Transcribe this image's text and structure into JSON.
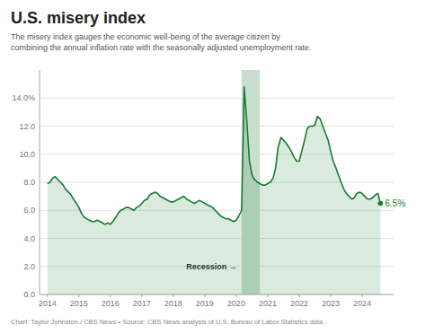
{
  "chart_data": {
    "type": "area",
    "title": "U.S. misery index",
    "subtitle": "The misery index gauges the economic well-being of the average citizen by\ncombining the annual inflation rate with the seasonally adjusted unemployment rate.",
    "footer": "Chart: Taylor Johnston / CBS News • Source: CBS News analysis of U.S. Bureau of Labor Statistics data",
    "color": "#1a7a30",
    "grid": true,
    "x": [
      2014.0,
      2014.08,
      2014.17,
      2014.25,
      2014.33,
      2014.42,
      2014.5,
      2014.58,
      2014.67,
      2014.75,
      2014.83,
      2014.92,
      2015.0,
      2015.08,
      2015.17,
      2015.25,
      2015.33,
      2015.42,
      2015.5,
      2015.58,
      2015.67,
      2015.75,
      2015.83,
      2015.92,
      2016.0,
      2016.08,
      2016.17,
      2016.25,
      2016.33,
      2016.42,
      2016.5,
      2016.58,
      2016.67,
      2016.75,
      2016.83,
      2016.92,
      2017.0,
      2017.08,
      2017.17,
      2017.25,
      2017.33,
      2017.42,
      2017.5,
      2017.58,
      2017.67,
      2017.75,
      2017.83,
      2017.92,
      2018.0,
      2018.08,
      2018.17,
      2018.25,
      2018.33,
      2018.42,
      2018.5,
      2018.58,
      2018.67,
      2018.75,
      2018.83,
      2018.92,
      2019.0,
      2019.08,
      2019.17,
      2019.25,
      2019.33,
      2019.42,
      2019.5,
      2019.58,
      2019.67,
      2019.75,
      2019.83,
      2019.92,
      2020.0,
      2020.08,
      2020.17,
      2020.25,
      2020.33,
      2020.42,
      2020.5,
      2020.58,
      2020.67,
      2020.75,
      2020.83,
      2020.92,
      2021.0,
      2021.08,
      2021.17,
      2021.25,
      2021.33,
      2021.42,
      2021.5,
      2021.58,
      2021.67,
      2021.75,
      2021.83,
      2021.92,
      2022.0,
      2022.08,
      2022.17,
      2022.25,
      2022.33,
      2022.42,
      2022.5,
      2022.58,
      2022.67,
      2022.75,
      2022.83,
      2022.92,
      2023.0,
      2023.08,
      2023.17,
      2023.25,
      2023.33,
      2023.42,
      2023.5,
      2023.58,
      2023.67,
      2023.75,
      2023.83,
      2023.92,
      2024.0,
      2024.08,
      2024.17,
      2024.25,
      2024.33,
      2024.42,
      2024.5,
      2024.58
    ],
    "values": [
      7.9,
      8.0,
      8.3,
      8.4,
      8.2,
      8.0,
      7.8,
      7.5,
      7.3,
      7.1,
      6.8,
      6.5,
      6.2,
      5.8,
      5.5,
      5.4,
      5.3,
      5.2,
      5.2,
      5.3,
      5.2,
      5.1,
      5.0,
      5.1,
      5.0,
      5.2,
      5.5,
      5.8,
      6.0,
      6.1,
      6.2,
      6.2,
      6.1,
      6.0,
      6.2,
      6.3,
      6.5,
      6.7,
      6.8,
      7.1,
      7.2,
      7.3,
      7.2,
      7.0,
      6.9,
      6.8,
      6.7,
      6.6,
      6.6,
      6.7,
      6.8,
      6.9,
      7.0,
      6.8,
      6.7,
      6.6,
      6.5,
      6.6,
      6.7,
      6.6,
      6.5,
      6.4,
      6.3,
      6.2,
      6.0,
      5.8,
      5.6,
      5.5,
      5.4,
      5.4,
      5.3,
      5.2,
      5.3,
      5.6,
      6.0,
      14.8,
      12.5,
      9.5,
      8.5,
      8.2,
      8.0,
      7.9,
      7.8,
      7.8,
      7.9,
      8.0,
      8.3,
      9.0,
      10.5,
      11.2,
      11.0,
      10.8,
      10.5,
      10.2,
      9.8,
      9.5,
      9.5,
      10.2,
      11.0,
      11.8,
      12.0,
      12.0,
      12.1,
      12.7,
      12.5,
      12.0,
      11.5,
      11.0,
      10.2,
      9.5,
      9.0,
      8.5,
      8.0,
      7.5,
      7.2,
      7.0,
      6.8,
      6.9,
      7.2,
      7.3,
      7.2,
      7.0,
      6.8,
      6.8,
      6.9,
      7.1,
      7.2,
      6.5
    ],
    "end_label": {
      "value": 6.5,
      "label": "6.5%"
    },
    "bands": [
      {
        "start": 2020.17,
        "end": 2020.75,
        "color": "#c8dfd0",
        "label": "Recession →"
      }
    ],
    "xlim": [
      2013.75,
      2025.0
    ],
    "xticks": [
      2014,
      2015,
      2016,
      2017,
      2018,
      2019,
      2020,
      2021,
      2022,
      2023,
      2024
    ],
    "ylim": [
      0,
      16
    ],
    "yticks": [
      {
        "value": 0.0,
        "label": "0.0"
      },
      {
        "value": 2.0,
        "label": "2.0"
      },
      {
        "value": 4.0,
        "label": "4.0"
      },
      {
        "value": 6.0,
        "label": "6.0"
      },
      {
        "value": 8.0,
        "label": "8.0"
      },
      {
        "value": 10.0,
        "label": "10.0"
      },
      {
        "value": 12.0,
        "label": "12.0"
      },
      {
        "value": 14.0,
        "label": "14.0%"
      }
    ]
  }
}
